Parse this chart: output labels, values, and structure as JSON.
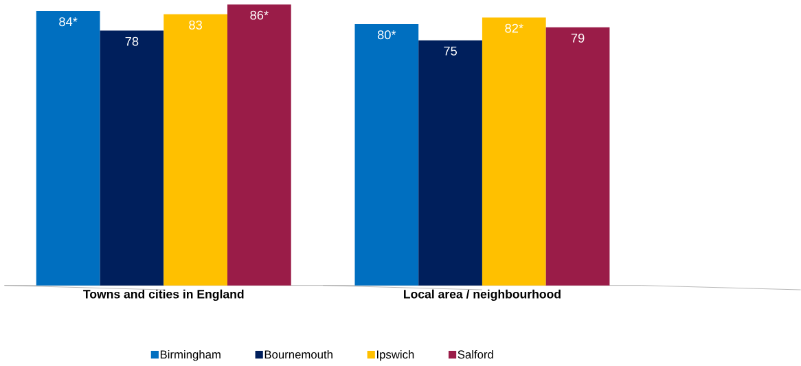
{
  "chart_data": {
    "type": "bar",
    "categories": [
      "Towns and cities in England",
      "Local area / neighbourhood"
    ],
    "series": [
      {
        "name": "Birmingham",
        "color": "#006fc0",
        "values": [
          84,
          80
        ],
        "value_labels": [
          "84*",
          "80*"
        ]
      },
      {
        "name": "Bournemouth",
        "color": "#001f5c",
        "values": [
          78,
          75
        ],
        "value_labels": [
          "78",
          "75"
        ]
      },
      {
        "name": "Ipswich",
        "color": "#ffc000",
        "values": [
          83,
          82
        ],
        "value_labels": [
          "83",
          "82*"
        ]
      },
      {
        "name": "Salford",
        "color": "#9a1c48",
        "values": [
          86,
          79
        ],
        "value_labels": [
          "86*",
          "79"
        ]
      }
    ],
    "legend": "bottom"
  }
}
